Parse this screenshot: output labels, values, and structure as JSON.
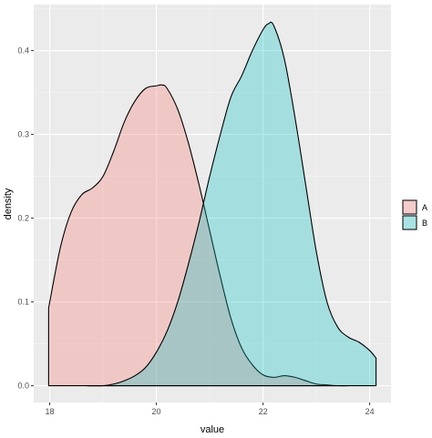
{
  "chart_data": {
    "type": "area",
    "xlabel": "value",
    "ylabel": "density",
    "xlim": [
      17.7,
      24.4
    ],
    "ylim": [
      -0.02,
      0.455
    ],
    "x_ticks": [
      18,
      20,
      22,
      24
    ],
    "y_ticks": [
      0.0,
      0.1,
      0.2,
      0.3,
      0.4
    ],
    "y_tick_labels": [
      "0.0",
      "0.1",
      "0.2",
      "0.3",
      "0.4"
    ],
    "grid": true,
    "legend": "right",
    "series": [
      {
        "name": "A",
        "color": "#F8766D",
        "x": [
          17.98,
          18.2,
          18.4,
          18.6,
          18.8,
          19.0,
          19.2,
          19.4,
          19.6,
          19.8,
          20.0,
          20.1,
          20.2,
          20.4,
          20.6,
          20.8,
          21.0,
          21.2,
          21.4,
          21.6,
          21.8,
          22.0,
          22.2,
          22.4,
          22.6,
          22.8,
          23.0,
          23.2,
          23.4,
          23.6
        ],
        "y": [
          0.093,
          0.165,
          0.207,
          0.228,
          0.236,
          0.25,
          0.28,
          0.315,
          0.34,
          0.355,
          0.358,
          0.359,
          0.355,
          0.33,
          0.29,
          0.24,
          0.185,
          0.13,
          0.08,
          0.045,
          0.025,
          0.013,
          0.01,
          0.012,
          0.01,
          0.006,
          0.002,
          0.001,
          0.0,
          0.0
        ]
      },
      {
        "name": "B",
        "color": "#00BFC4",
        "x": [
          18.7,
          19.0,
          19.2,
          19.4,
          19.6,
          19.8,
          20.0,
          20.2,
          20.4,
          20.6,
          20.8,
          21.0,
          21.2,
          21.4,
          21.6,
          21.8,
          22.0,
          22.1,
          22.2,
          22.4,
          22.6,
          22.8,
          23.0,
          23.2,
          23.4,
          23.6,
          23.8,
          24.0,
          24.12
        ],
        "y": [
          0.0,
          0.0,
          0.002,
          0.006,
          0.012,
          0.022,
          0.04,
          0.065,
          0.1,
          0.145,
          0.195,
          0.25,
          0.3,
          0.345,
          0.37,
          0.4,
          0.425,
          0.432,
          0.43,
          0.39,
          0.32,
          0.24,
          0.16,
          0.1,
          0.07,
          0.058,
          0.052,
          0.042,
          0.033
        ]
      }
    ]
  }
}
